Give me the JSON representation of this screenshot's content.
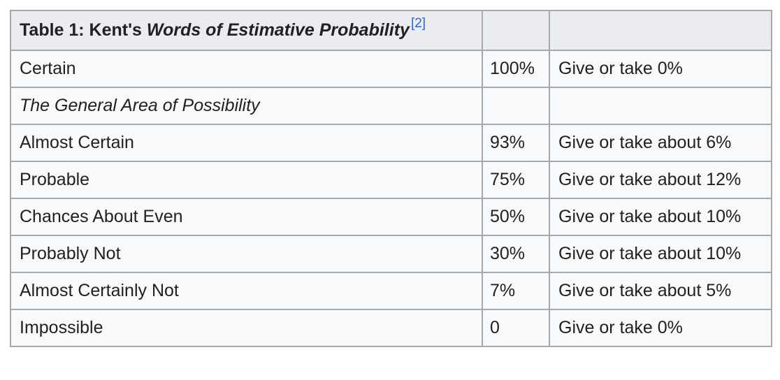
{
  "table": {
    "caption_prefix": "Table 1: Kent's ",
    "caption_italic": "Words of Estimative Probability",
    "reference": "[2]",
    "rows": [
      {
        "term": "Certain",
        "probability": "100%",
        "range": "Give or take 0%"
      },
      {
        "term": "The General Area of Possibility",
        "probability": "",
        "range": "",
        "italic": true
      },
      {
        "term": "Almost Certain",
        "probability": "93%",
        "range": "Give or take about 6%"
      },
      {
        "term": "Probable",
        "probability": "75%",
        "range": "Give or take about 12%"
      },
      {
        "term": "Chances About Even",
        "probability": "50%",
        "range": "Give or take about 10%"
      },
      {
        "term": "Probably Not",
        "probability": "30%",
        "range": "Give or take about 10%"
      },
      {
        "term": "Almost Certainly Not",
        "probability": "7%",
        "range": "Give or take about 5%"
      },
      {
        "term": "Impossible",
        "probability": "0",
        "range": "Give or take 0%"
      }
    ]
  }
}
